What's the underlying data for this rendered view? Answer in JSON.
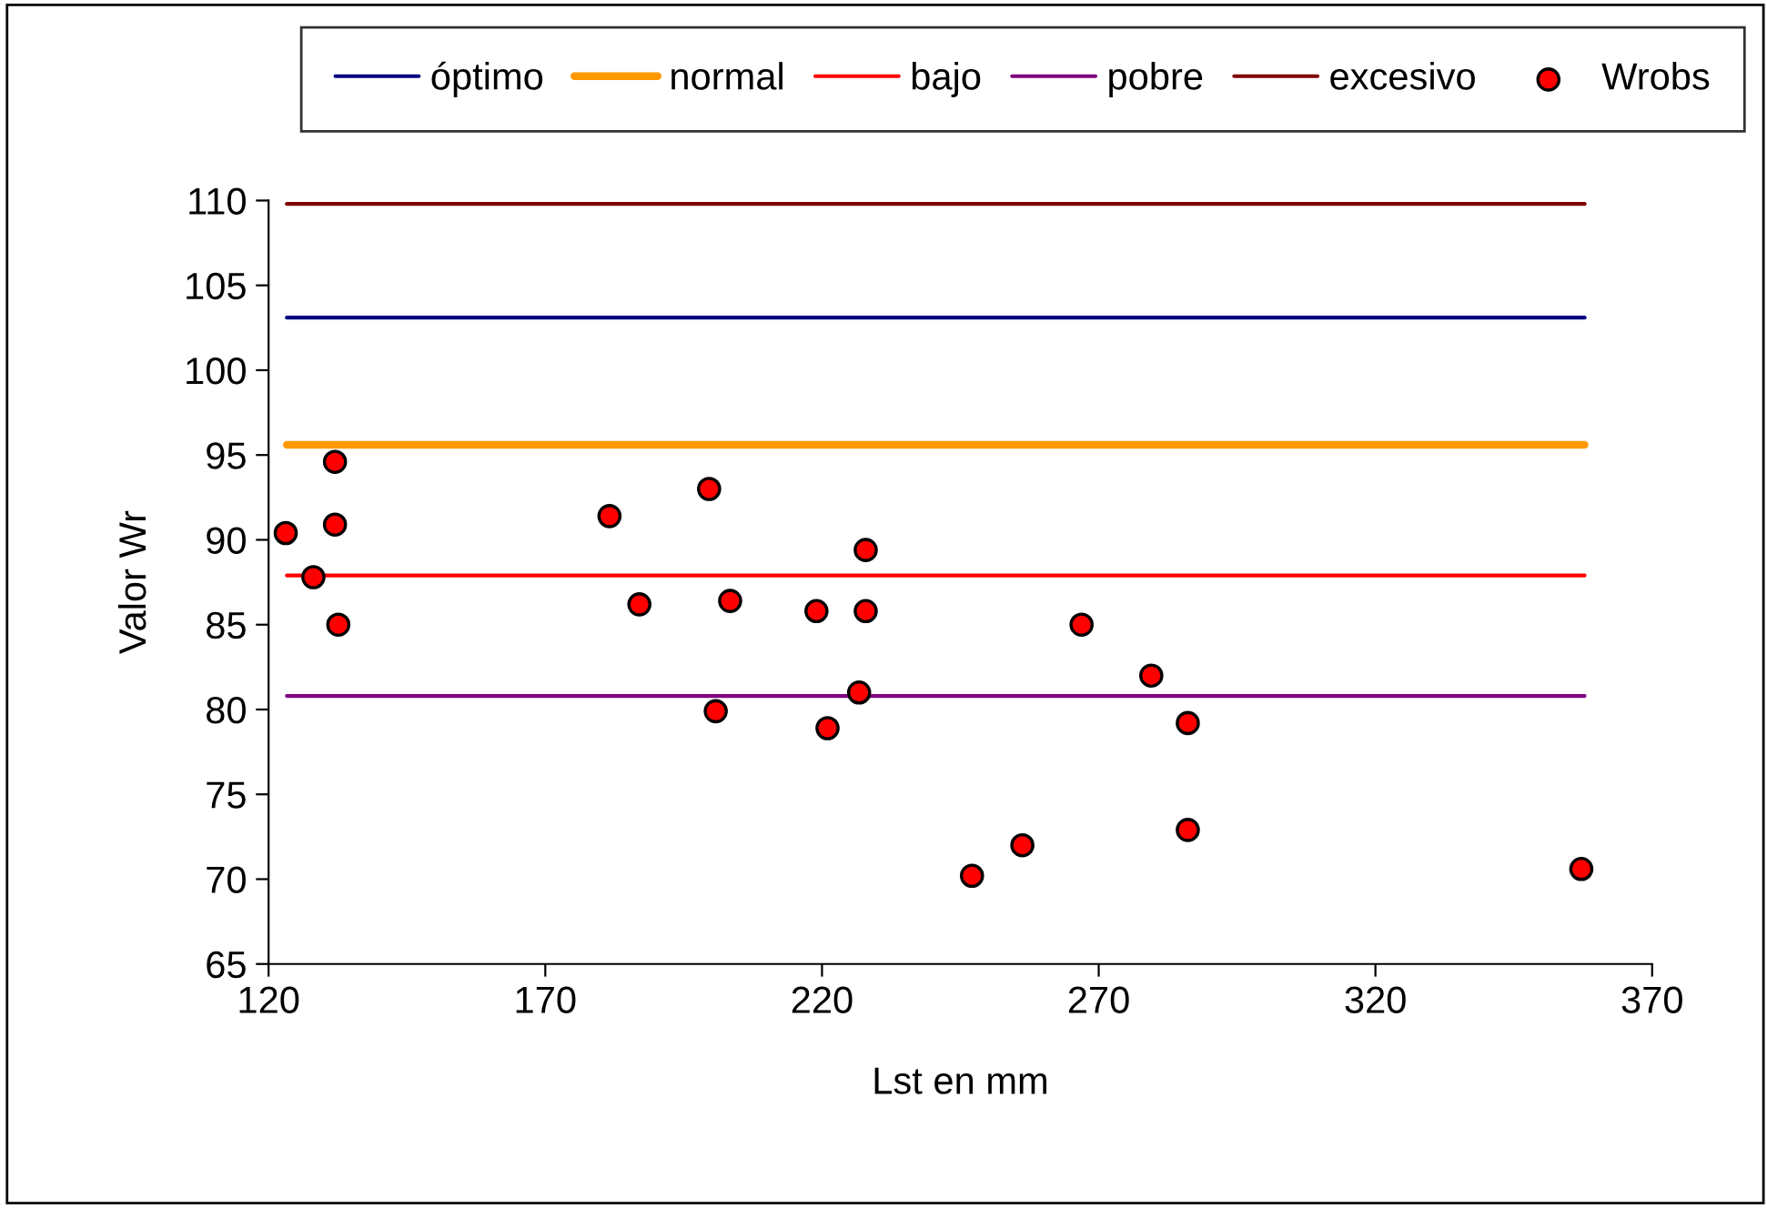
{
  "chart_data": {
    "type": "scatter",
    "xlabel": "Lst en mm",
    "ylabel": "Valor Wr",
    "xlim": [
      120,
      370
    ],
    "xticks": [
      120,
      170,
      220,
      270,
      320,
      370
    ],
    "ylim": [
      65,
      110
    ],
    "yticks": [
      65,
      70,
      75,
      80,
      85,
      90,
      95,
      100,
      105,
      110
    ],
    "grid": false,
    "legend": "top",
    "series": [
      {
        "name": "óptimo",
        "type": "line",
        "color": "#000080",
        "x": [
          123.3,
          357.8
        ],
        "values": [
          103.1,
          103.1
        ]
      },
      {
        "name": "normal",
        "type": "line",
        "color": "#ff9900",
        "x": [
          123.3,
          357.8
        ],
        "values": [
          95.6,
          95.6
        ]
      },
      {
        "name": "bajo",
        "type": "line",
        "color": "#ff0000",
        "x": [
          123.3,
          357.8
        ],
        "values": [
          87.9,
          87.9
        ]
      },
      {
        "name": "pobre",
        "type": "line",
        "color": "#800080",
        "x": [
          123.3,
          357.8
        ],
        "values": [
          80.8,
          80.8
        ]
      },
      {
        "name": "excesivo",
        "type": "line",
        "color": "#800000",
        "x": [
          123.3,
          357.8
        ],
        "values": [
          109.8,
          109.8
        ]
      },
      {
        "name": "Wrobs",
        "marker": "circle",
        "color": "#ff0000",
        "x": [
          123.1,
          128.1,
          132.0,
          132.0,
          132.6,
          181.6,
          187.0,
          199.6,
          200.8,
          203.4,
          219.0,
          221.0,
          226.7,
          227.9,
          227.9,
          247.1,
          256.2,
          266.9,
          279.5,
          286.1,
          286.1,
          357.2
        ],
        "values": [
          90.4,
          87.8,
          94.6,
          90.9,
          85.0,
          91.4,
          86.2,
          93.0,
          79.9,
          86.4,
          85.8,
          78.9,
          81.0,
          89.4,
          85.8,
          70.2,
          72.0,
          85.0,
          82.0,
          79.2,
          72.9,
          70.6
        ]
      }
    ]
  }
}
